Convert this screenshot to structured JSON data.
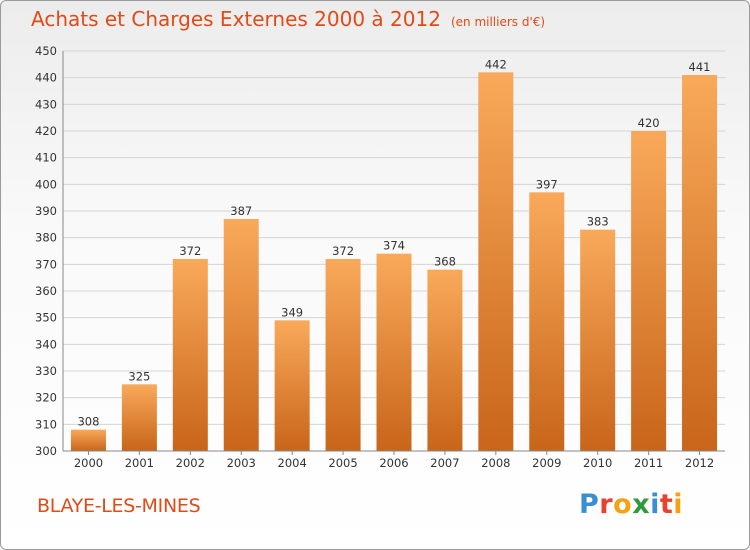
{
  "header": {
    "title": "Achats et Charges Externes 2000 à 2012",
    "subtitle": "(en milliers d'€)"
  },
  "footer": {
    "commune": "BLAYE-LES-MINES",
    "logo_text": "Proxiti",
    "logo_letters": [
      {
        "char": "P",
        "color": "#3a8fd1"
      },
      {
        "char": "r",
        "color": "#e8412d"
      },
      {
        "char": "o",
        "color": "#f3a214"
      },
      {
        "char": "x",
        "color": "#2f9a3e"
      },
      {
        "char": "i",
        "color": "#3a8fd1"
      },
      {
        "char": "t",
        "color": "#e8412d"
      },
      {
        "char": "i",
        "color": "#f3a214"
      }
    ]
  },
  "chart_data": {
    "type": "bar",
    "title": "Achats et Charges Externes 2000 à 2012",
    "subtitle": "(en milliers d'€)",
    "xlabel": "",
    "ylabel": "",
    "categories": [
      "2000",
      "2001",
      "2002",
      "2003",
      "2004",
      "2005",
      "2006",
      "2007",
      "2008",
      "2009",
      "2010",
      "2011",
      "2012"
    ],
    "values": [
      308,
      325,
      372,
      387,
      349,
      372,
      374,
      368,
      442,
      397,
      383,
      420,
      441
    ],
    "ylim": [
      300,
      450
    ],
    "yticks": [
      300,
      310,
      320,
      330,
      340,
      350,
      360,
      370,
      380,
      390,
      400,
      410,
      420,
      430,
      440,
      450
    ],
    "grid": true,
    "legend": "none",
    "colors": {
      "bar_light": "#f9a95a",
      "bar_dark": "#c8651a",
      "grid": "#d4d4d4",
      "axis": "#888888",
      "title": "#e04b16"
    }
  }
}
